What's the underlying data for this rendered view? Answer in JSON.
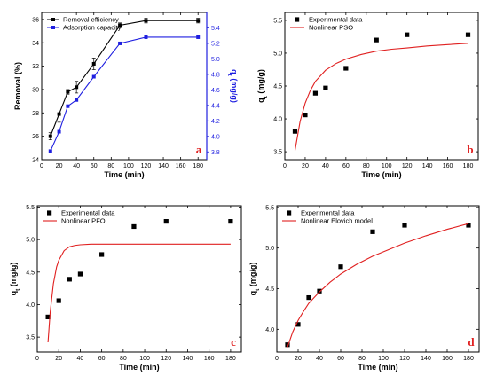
{
  "chart_data": [
    {
      "panel": "a",
      "type": "line",
      "xlabel": "Time (min)",
      "ylabel": "Removal (%)",
      "y2label": "qt (mg/g)",
      "xlim": [
        0,
        190
      ],
      "ylim": [
        24,
        36.6
      ],
      "y2lim": [
        3.7,
        5.6
      ],
      "xticks": [
        0,
        20,
        40,
        60,
        80,
        100,
        120,
        140,
        160,
        180
      ],
      "yticks": [
        24,
        26,
        28,
        30,
        32,
        34,
        36
      ],
      "y2ticks": [
        3.8,
        4.0,
        4.2,
        4.4,
        4.6,
        4.8,
        5.0,
        5.2,
        5.4
      ],
      "legend_position": "top-left",
      "panel_label": "a",
      "series": [
        {
          "name": "Removal efficiency",
          "axis": "left",
          "color": "#000000",
          "marker": "square",
          "x": [
            10,
            20,
            30,
            40,
            60,
            90,
            120,
            180
          ],
          "y": [
            26.0,
            27.9,
            29.8,
            30.2,
            32.2,
            35.5,
            35.9,
            35.9
          ],
          "err": [
            0.3,
            0.7,
            0.2,
            0.5,
            0.5,
            0.2,
            0.2,
            0.2
          ]
        },
        {
          "name": "Adsorption capacity",
          "axis": "right",
          "color": "#1f1fe0",
          "marker": "square",
          "x": [
            10,
            20,
            30,
            40,
            60,
            90,
            120,
            180
          ],
          "y": [
            3.81,
            4.06,
            4.39,
            4.47,
            4.77,
            5.2,
            5.28,
            5.28
          ]
        }
      ]
    },
    {
      "panel": "b",
      "type": "scatter",
      "xlabel": "Time (min)",
      "ylabel": "qt (mg/g)",
      "xlim": [
        0,
        190
      ],
      "ylim": [
        3.38,
        5.62
      ],
      "xticks": [
        0,
        20,
        40,
        60,
        80,
        100,
        120,
        140,
        160,
        180
      ],
      "yticks": [
        3.5,
        4.0,
        4.5,
        5.0,
        5.5
      ],
      "legend_position": "top-left",
      "panel_label": "b",
      "series": [
        {
          "name": "Experimental data",
          "kind": "points",
          "color": "#000000",
          "x": [
            10,
            20,
            30,
            40,
            60,
            90,
            120,
            180
          ],
          "y": [
            3.81,
            4.06,
            4.39,
            4.47,
            4.77,
            5.2,
            5.28,
            5.28
          ]
        },
        {
          "name": "Nonlinear PSO",
          "kind": "line",
          "color": "#e02020",
          "x": [
            10,
            15,
            20,
            25,
            30,
            40,
            50,
            60,
            75,
            90,
            105,
            120,
            140,
            160,
            180
          ],
          "y": [
            3.52,
            3.96,
            4.24,
            4.43,
            4.57,
            4.74,
            4.84,
            4.91,
            4.98,
            5.03,
            5.06,
            5.08,
            5.11,
            5.13,
            5.15
          ]
        }
      ]
    },
    {
      "panel": "c",
      "type": "scatter",
      "xlabel": "Time (min)",
      "ylabel": "qt (mg/g)",
      "xlim": [
        0,
        190
      ],
      "ylim": [
        3.27,
        5.52
      ],
      "xticks": [
        0,
        20,
        40,
        60,
        80,
        100,
        120,
        140,
        160,
        180
      ],
      "yticks": [
        3.5,
        4.0,
        4.5,
        5.0,
        5.5
      ],
      "legend_position": "top-left",
      "panel_label": "c",
      "series": [
        {
          "name": "Experimental data",
          "kind": "points",
          "color": "#000000",
          "x": [
            10,
            20,
            30,
            40,
            60,
            90,
            120,
            180
          ],
          "y": [
            3.81,
            4.06,
            4.39,
            4.47,
            4.77,
            5.2,
            5.28,
            5.28
          ]
        },
        {
          "name": "Nonlinear PFO",
          "kind": "line",
          "color": "#e02020",
          "x": [
            10,
            12,
            15,
            18,
            20,
            25,
            30,
            35,
            40,
            50,
            60,
            80,
            100,
            140,
            180
          ],
          "y": [
            3.42,
            3.88,
            4.32,
            4.58,
            4.68,
            4.83,
            4.89,
            4.91,
            4.92,
            4.93,
            4.93,
            4.93,
            4.93,
            4.93,
            4.93
          ]
        }
      ]
    },
    {
      "panel": "d",
      "type": "scatter",
      "xlabel": "Time (min)",
      "ylabel": "qt (mg/g)",
      "xlim": [
        0,
        190
      ],
      "ylim": [
        3.72,
        5.52
      ],
      "xticks": [
        0,
        20,
        40,
        60,
        80,
        100,
        120,
        140,
        160,
        180
      ],
      "yticks": [
        4.0,
        4.5,
        5.0,
        5.5
      ],
      "legend_position": "top-left",
      "panel_label": "d",
      "series": [
        {
          "name": "Experimental data",
          "kind": "points",
          "color": "#000000",
          "x": [
            10,
            20,
            30,
            40,
            60,
            90,
            120,
            180
          ],
          "y": [
            3.81,
            4.06,
            4.39,
            4.47,
            4.77,
            5.2,
            5.28,
            5.28
          ]
        },
        {
          "name": "Nonlinear Elovich model",
          "kind": "line",
          "color": "#e02020",
          "x": [
            10,
            15,
            20,
            25,
            30,
            40,
            50,
            60,
            75,
            90,
            105,
            120,
            140,
            160,
            180
          ],
          "y": [
            3.78,
            3.97,
            4.11,
            4.22,
            4.32,
            4.46,
            4.58,
            4.68,
            4.8,
            4.9,
            4.98,
            5.06,
            5.15,
            5.23,
            5.3
          ]
        }
      ]
    }
  ]
}
